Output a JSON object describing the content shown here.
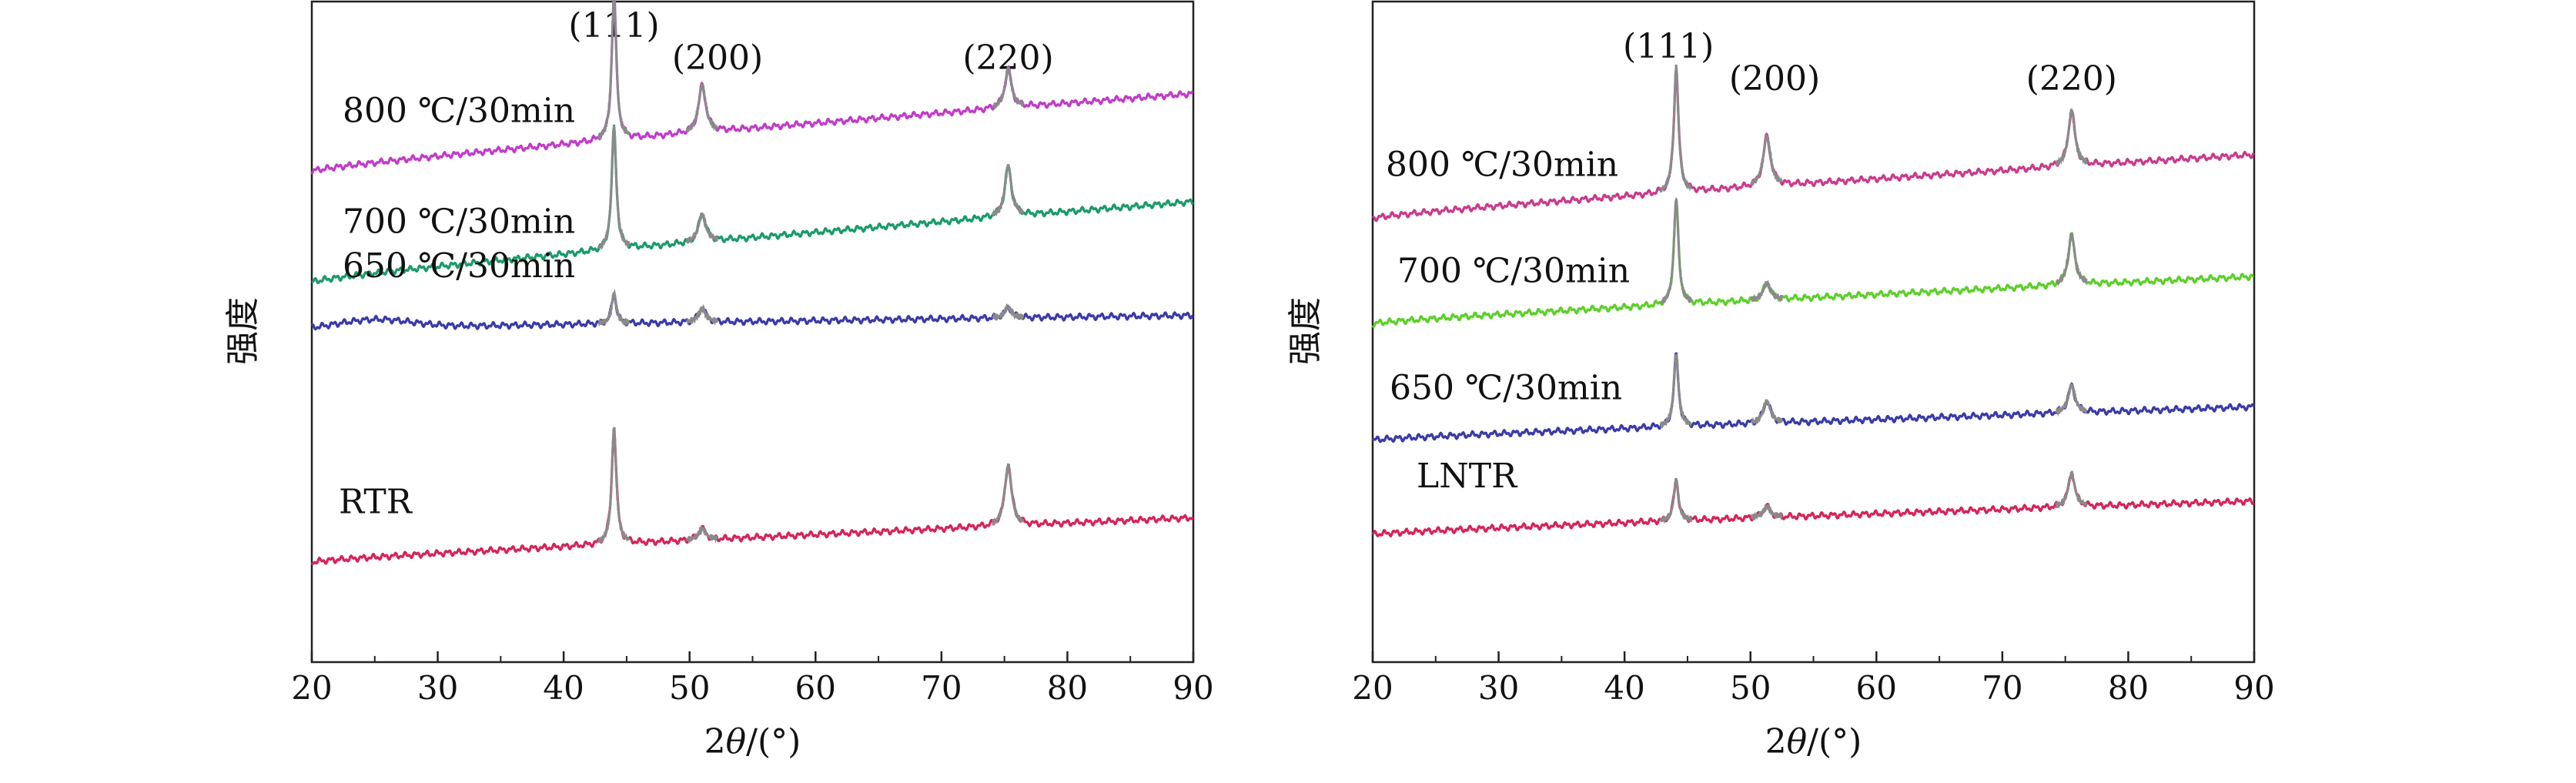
{
  "chart_data": [
    {
      "type": "line",
      "xlabel_prefix": "2",
      "xlabel_symbol": "θ",
      "xlabel_suffix": "/(°)",
      "ylabel": "强度",
      "xlim": [
        20,
        90
      ],
      "x_ticks": [
        20,
        30,
        40,
        50,
        60,
        70,
        80,
        90
      ],
      "y_ticks_shown": false,
      "peaks": [
        {
          "label": "(111)",
          "x": 44.0
        },
        {
          "label": "(200)",
          "x": 51.0
        },
        {
          "label": "(220)",
          "x": 75.3
        }
      ],
      "series": [
        {
          "name": "800 ℃/30min",
          "color": "#c03cc8",
          "baseline_start": 0.705,
          "baseline_end": 0.845,
          "peak_heights": [
            0.26,
            0.085,
            0.07
          ],
          "hump": 0.0
        },
        {
          "name": "700 ℃/30min",
          "color": "#1a9a6a",
          "baseline_start": 0.505,
          "baseline_end": 0.65,
          "peak_heights": [
            0.22,
            0.05,
            0.09
          ],
          "hump": 0.0
        },
        {
          "name": "650 ℃/30min",
          "color": "#3a3aa8",
          "baseline_start": 0.42,
          "baseline_end": 0.445,
          "peak_heights": [
            0.055,
            0.025,
            0.02
          ],
          "hump": 0.015
        },
        {
          "name": "RTR",
          "color": "#d4245a",
          "baseline_start": 0.0,
          "baseline_end": 0.08,
          "peak_heights": [
            0.21,
            0.02,
            0.11
          ],
          "hump": 0.0
        }
      ]
    },
    {
      "type": "line",
      "xlabel_prefix": "2",
      "xlabel_symbol": "θ",
      "xlabel_suffix": "/(°)",
      "ylabel": "强度",
      "xlim": [
        20,
        90
      ],
      "x_ticks": [
        20,
        30,
        40,
        50,
        60,
        70,
        80,
        90
      ],
      "y_ticks_shown": false,
      "peaks": [
        {
          "label": "(111)",
          "x": 44.1
        },
        {
          "label": "(200)",
          "x": 51.3
        },
        {
          "label": "(220)",
          "x": 75.5
        }
      ],
      "series": [
        {
          "name": "800 ℃/30min",
          "color": "#c83a8e",
          "baseline_start": 0.62,
          "baseline_end": 0.735,
          "peak_heights": [
            0.225,
            0.09,
            0.1
          ],
          "hump": 0.0
        },
        {
          "name": "700 ℃/30min",
          "color": "#5ccf2a",
          "baseline_start": 0.43,
          "baseline_end": 0.515,
          "peak_heights": [
            0.19,
            0.03,
            0.09
          ],
          "hump": 0.0
        },
        {
          "name": "650 ℃/30min",
          "color": "#3a3aa8",
          "baseline_start": 0.22,
          "baseline_end": 0.28,
          "peak_heights": [
            0.13,
            0.04,
            0.05
          ],
          "hump": 0.0
        },
        {
          "name": "LNTR",
          "color": "#d4245a",
          "baseline_start": 0.05,
          "baseline_end": 0.11,
          "peak_heights": [
            0.075,
            0.02,
            0.06
          ],
          "hump": 0.0
        }
      ]
    }
  ]
}
